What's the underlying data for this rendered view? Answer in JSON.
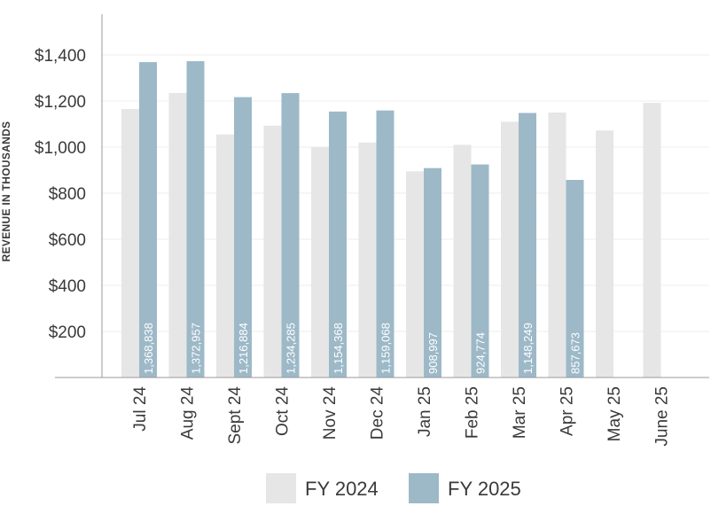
{
  "chart_data": {
    "type": "bar",
    "title": "",
    "xlabel": "",
    "ylabel": "REVENUE IN THOUSANDS",
    "ylim": [
      0,
      1600
    ],
    "yticks": [
      200,
      400,
      600,
      800,
      1000,
      1200,
      1400
    ],
    "ytick_labels": [
      "$200",
      "$400",
      "$600",
      "$800",
      "$1,000",
      "$1,200",
      "$1,400"
    ],
    "categories": [
      "Jul 24",
      "Aug 24",
      "Sept 24",
      "Oct 24",
      "Nov 24",
      "Dec 24",
      "Jan 25",
      "Feb 25",
      "Mar 25",
      "Apr 25",
      "May 25",
      "June 25"
    ],
    "series": [
      {
        "name": "FY 2024",
        "color": "#e6e6e6",
        "values": [
          1165,
          1235,
          1055,
          1093,
          1000,
          1020,
          895,
          1010,
          1110,
          1150,
          1072,
          1192
        ]
      },
      {
        "name": "FY 2025",
        "color": "#9db9c8",
        "values": [
          1368.838,
          1372.957,
          1216.884,
          1234.285,
          1154.368,
          1159.068,
          908.997,
          924.774,
          1148.249,
          857.673,
          null,
          null
        ],
        "labels": [
          "1,368,838",
          "1,372,957",
          "1,216,884",
          "1,234,285",
          "1,154,368",
          "1,159,068",
          "908,997",
          "924,774",
          "1,148,249",
          "857,673",
          "",
          ""
        ]
      }
    ],
    "grid": true,
    "legend": "bottom-center"
  }
}
